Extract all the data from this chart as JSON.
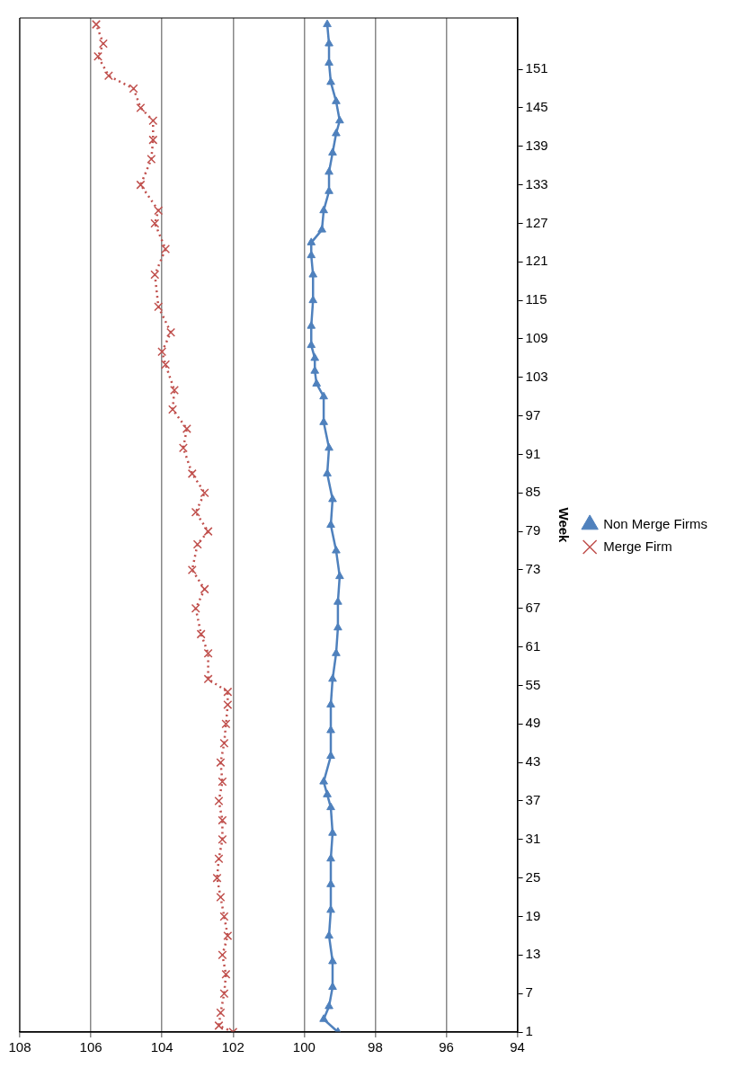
{
  "chart_data": {
    "type": "line",
    "orientation": "horizontal",
    "ylabel": "Week",
    "ylim": [
      1,
      159
    ],
    "yticks": [
      1,
      7,
      13,
      19,
      25,
      31,
      37,
      43,
      49,
      55,
      61,
      67,
      73,
      79,
      85,
      91,
      97,
      103,
      109,
      115,
      121,
      127,
      133,
      139,
      145,
      151
    ],
    "xlim": [
      108,
      94
    ],
    "xticks": [
      94,
      96,
      98,
      100,
      102,
      104,
      106,
      108
    ],
    "grid": "x",
    "legend": "right",
    "series": [
      {
        "name": "Non Merge Firms",
        "color": "#4f81bd",
        "marker": "triangle",
        "line_style": "solid",
        "x": [
          1,
          3,
          5,
          8,
          12,
          16,
          20,
          24,
          28,
          32,
          36,
          38,
          40,
          44,
          48,
          52,
          56,
          60,
          64,
          68,
          72,
          76,
          80,
          84,
          88,
          92,
          96,
          100,
          102,
          104,
          106,
          108,
          111,
          115,
          119,
          122,
          124,
          126,
          129,
          132,
          135,
          138,
          141,
          143,
          146,
          149,
          152,
          155,
          158
        ],
        "values": [
          99.05,
          99.45,
          99.3,
          99.2,
          99.2,
          99.3,
          99.25,
          99.25,
          99.25,
          99.2,
          99.25,
          99.35,
          99.45,
          99.25,
          99.25,
          99.25,
          99.2,
          99.1,
          99.05,
          99.05,
          99.0,
          99.1,
          99.25,
          99.2,
          99.35,
          99.3,
          99.45,
          99.45,
          99.65,
          99.7,
          99.7,
          99.8,
          99.8,
          99.75,
          99.75,
          99.8,
          99.8,
          99.5,
          99.45,
          99.3,
          99.3,
          99.2,
          99.1,
          99.0,
          99.1,
          99.25,
          99.3,
          99.3,
          99.35
        ]
      },
      {
        "name": "Merge Firm",
        "color": "#c0504d",
        "marker": "cross",
        "line_style": "dotted",
        "x": [
          1,
          2,
          4,
          7,
          10,
          13,
          16,
          19,
          22,
          25,
          28,
          31,
          34,
          37,
          40,
          43,
          46,
          49,
          52,
          54,
          56,
          60,
          63,
          67,
          70,
          73,
          77,
          79,
          82,
          85,
          88,
          92,
          95,
          98,
          101,
          105,
          107,
          110,
          114,
          119,
          123,
          127,
          129,
          133,
          137,
          140,
          143,
          145,
          148,
          150,
          153,
          155,
          158
        ],
        "values": [
          102.0,
          102.4,
          102.35,
          102.25,
          102.2,
          102.3,
          102.15,
          102.25,
          102.35,
          102.45,
          102.4,
          102.3,
          102.3,
          102.4,
          102.3,
          102.35,
          102.25,
          102.2,
          102.15,
          102.15,
          102.7,
          102.7,
          102.9,
          103.05,
          102.8,
          103.15,
          103.0,
          102.7,
          103.05,
          102.8,
          103.15,
          103.4,
          103.3,
          103.7,
          103.65,
          103.9,
          104.0,
          103.75,
          104.1,
          104.2,
          103.9,
          104.2,
          104.1,
          104.6,
          104.3,
          104.25,
          104.25,
          104.6,
          104.8,
          105.5,
          105.8,
          105.65,
          105.85
        ]
      }
    ]
  }
}
